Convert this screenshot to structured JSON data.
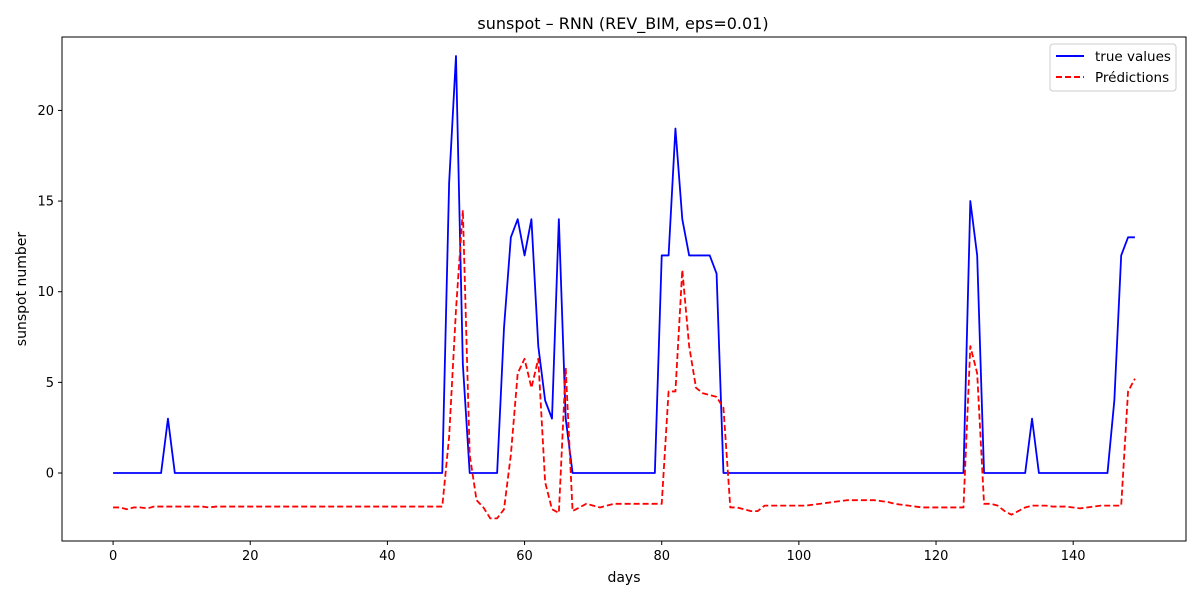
{
  "chart_data": {
    "type": "line",
    "title": "sunspot – RNN (REV_BIM, eps=0.01)",
    "xlabel": "days",
    "ylabel": "sunspot number",
    "xlim": [
      -7.45,
      156.45
    ],
    "ylim": [
      -3.75,
      24.05
    ],
    "xticks": [
      0,
      20,
      40,
      60,
      80,
      100,
      120,
      140
    ],
    "yticks": [
      0,
      5,
      10,
      15,
      20
    ],
    "grid": false,
    "legend_position": "upper right",
    "series": [
      {
        "name": "true values",
        "color": "#0000ff",
        "style": "solid",
        "values": [
          0,
          0,
          0,
          0,
          0,
          0,
          0,
          0,
          3,
          0,
          0,
          0,
          0,
          0,
          0,
          0,
          0,
          0,
          0,
          0,
          0,
          0,
          0,
          0,
          0,
          0,
          0,
          0,
          0,
          0,
          0,
          0,
          0,
          0,
          0,
          0,
          0,
          0,
          0,
          0,
          0,
          0,
          0,
          0,
          0,
          0,
          0,
          0,
          0,
          16,
          23,
          6,
          0,
          0,
          0,
          0,
          0,
          8,
          13,
          14,
          12,
          14,
          7,
          4,
          3,
          14,
          3,
          0,
          0,
          0,
          0,
          0,
          0,
          0,
          0,
          0,
          0,
          0,
          0,
          0,
          12,
          12,
          19,
          14,
          12,
          12,
          12,
          12,
          11,
          0,
          0,
          0,
          0,
          0,
          0,
          0,
          0,
          0,
          0,
          0,
          0,
          0,
          0,
          0,
          0,
          0,
          0,
          0,
          0,
          0,
          0,
          0,
          0,
          0,
          0,
          0,
          0,
          0,
          0,
          0,
          0,
          0,
          0,
          0,
          0,
          15,
          12,
          0,
          0,
          0,
          0,
          0,
          0,
          0,
          3,
          0,
          0,
          0,
          0,
          0,
          0,
          0,
          0,
          0,
          0,
          0,
          4,
          12,
          13,
          13
        ]
      },
      {
        "name": "Prédictions",
        "color": "#ff0000",
        "style": "dashed",
        "values": [
          -1.9,
          -1.9,
          -2.0,
          -1.9,
          -1.9,
          -1.95,
          -1.85,
          -1.85,
          -1.85,
          -1.85,
          -1.85,
          -1.85,
          -1.85,
          -1.85,
          -1.9,
          -1.85,
          -1.85,
          -1.85,
          -1.85,
          -1.85,
          -1.85,
          -1.85,
          -1.85,
          -1.85,
          -1.85,
          -1.85,
          -1.85,
          -1.85,
          -1.85,
          -1.85,
          -1.85,
          -1.85,
          -1.85,
          -1.85,
          -1.85,
          -1.85,
          -1.85,
          -1.85,
          -1.85,
          -1.85,
          -1.85,
          -1.85,
          -1.85,
          -1.85,
          -1.85,
          -1.85,
          -1.85,
          -1.85,
          -1.85,
          2.0,
          9.0,
          14.5,
          1.0,
          -1.5,
          -1.9,
          -2.5,
          -2.5,
          -2.0,
          1.0,
          5.5,
          6.3,
          4.7,
          6.3,
          -0.5,
          -2.0,
          -2.2,
          5.8,
          -2.1,
          -1.9,
          -1.7,
          -1.8,
          -1.9,
          -1.8,
          -1.7,
          -1.7,
          -1.7,
          -1.7,
          -1.7,
          -1.7,
          -1.7,
          -1.7,
          4.5,
          4.5,
          11.2,
          7.0,
          4.7,
          4.4,
          4.3,
          4.2,
          3.6,
          -1.9,
          -1.9,
          -2.0,
          -2.1,
          -2.1,
          -1.8,
          -1.8,
          -1.8,
          -1.8,
          -1.8,
          -1.8,
          -1.8,
          -1.75,
          -1.7,
          -1.65,
          -1.6,
          -1.55,
          -1.5,
          -1.5,
          -1.5,
          -1.5,
          -1.5,
          -1.55,
          -1.6,
          -1.7,
          -1.75,
          -1.8,
          -1.85,
          -1.9,
          -1.9,
          -1.9,
          -1.9,
          -1.9,
          -1.9,
          -1.9,
          7.0,
          5.5,
          -1.7,
          -1.7,
          -1.8,
          -2.1,
          -2.3,
          -2.1,
          -1.9,
          -1.8,
          -1.8,
          -1.8,
          -1.85,
          -1.85,
          -1.85,
          -1.9,
          -1.95,
          -1.9,
          -1.85,
          -1.8,
          -1.8,
          -1.8,
          -1.8,
          4.5,
          5.2
        ]
      }
    ]
  }
}
